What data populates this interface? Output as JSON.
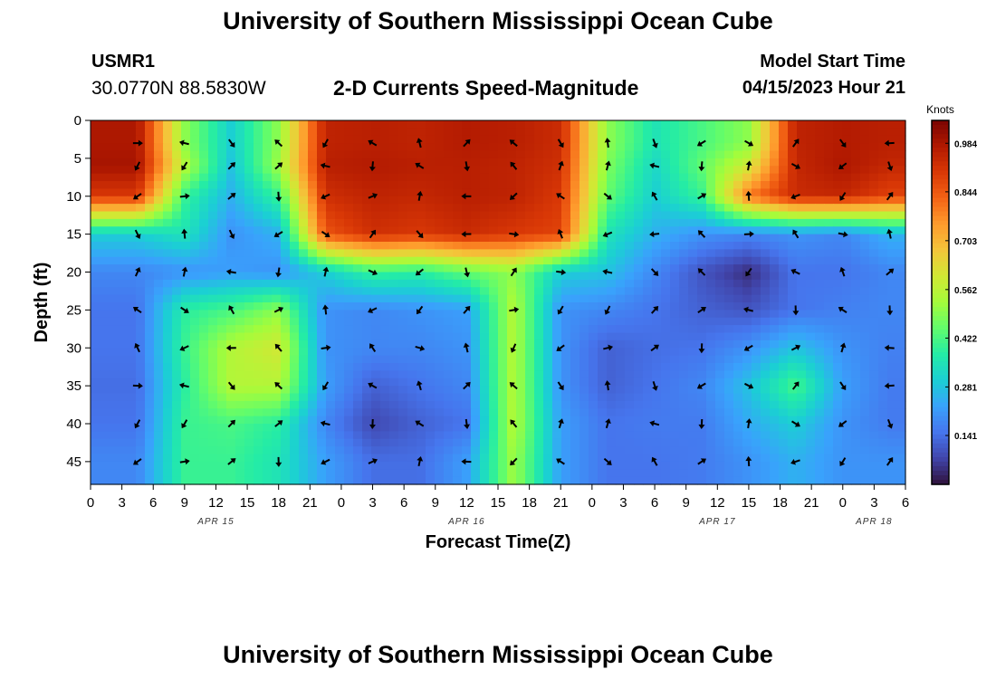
{
  "header": {
    "title": "University of Southern Mississippi Ocean Cube",
    "station_id": "USMR1",
    "station_coords": "30.0770N  88.5830W",
    "plot_title": "2-D Currents Speed-Magnitude",
    "model_label": "Model Start Time",
    "model_time": "04/15/2023 Hour 21"
  },
  "footer": {
    "title": "University of Southern Mississippi Ocean Cube"
  },
  "chart_data": {
    "type": "heatmap",
    "title": "2-D Currents Speed-Magnitude",
    "xlabel": "Forecast Time(Z)",
    "ylabel": "Depth (ft)",
    "x_tick_labels": [
      "0",
      "3",
      "6",
      "9",
      "12",
      "15",
      "18",
      "21",
      "0",
      "3",
      "6",
      "9",
      "12",
      "15",
      "18",
      "21",
      "0",
      "3",
      "6",
      "9",
      "12",
      "15",
      "18",
      "21",
      "0",
      "3",
      "6"
    ],
    "date_labels": [
      {
        "label": "APR 15",
        "x_index": 4
      },
      {
        "label": "APR 16",
        "x_index": 12
      },
      {
        "label": "APR 17",
        "x_index": 20
      },
      {
        "label": "APR 18",
        "x_index": 25
      }
    ],
    "y_tick_labels": [
      "0",
      "5",
      "10",
      "15",
      "20",
      "25",
      "30",
      "35",
      "40",
      "45"
    ],
    "ylim": [
      0,
      48
    ],
    "y_inverted": true,
    "x_hours": [
      4.5,
      9,
      13.5,
      18,
      22.5,
      27,
      31.5,
      36,
      40.5,
      45,
      49.5,
      54,
      58.5,
      63,
      67.5,
      72,
      76.5
    ],
    "depths": [
      3,
      6,
      10,
      15,
      20,
      25,
      30,
      35,
      40,
      45
    ],
    "values_knots": [
      [
        0.98,
        0.5,
        0.3,
        0.5,
        0.95,
        0.96,
        0.95,
        0.97,
        0.96,
        0.93,
        0.5,
        0.35,
        0.42,
        0.5,
        0.95,
        0.97,
        0.96
      ],
      [
        0.99,
        0.55,
        0.28,
        0.52,
        0.96,
        0.97,
        0.96,
        0.96,
        0.95,
        0.92,
        0.48,
        0.32,
        0.45,
        0.6,
        0.94,
        0.98,
        0.94
      ],
      [
        0.9,
        0.4,
        0.25,
        0.4,
        0.92,
        0.95,
        0.94,
        0.96,
        0.95,
        0.9,
        0.45,
        0.3,
        0.4,
        0.8,
        0.93,
        0.94,
        0.88
      ],
      [
        0.3,
        0.35,
        0.2,
        0.25,
        0.85,
        0.92,
        0.9,
        0.93,
        0.9,
        0.88,
        0.35,
        0.25,
        0.2,
        0.18,
        0.2,
        0.18,
        0.25
      ],
      [
        0.18,
        0.2,
        0.22,
        0.2,
        0.3,
        0.4,
        0.38,
        0.45,
        0.5,
        0.3,
        0.28,
        0.18,
        0.1,
        0.04,
        0.15,
        0.15,
        0.18
      ],
      [
        0.15,
        0.38,
        0.42,
        0.5,
        0.2,
        0.18,
        0.2,
        0.22,
        0.55,
        0.2,
        0.18,
        0.15,
        0.12,
        0.1,
        0.15,
        0.17,
        0.18
      ],
      [
        0.15,
        0.4,
        0.55,
        0.6,
        0.2,
        0.18,
        0.18,
        0.2,
        0.55,
        0.2,
        0.12,
        0.14,
        0.15,
        0.2,
        0.28,
        0.2,
        0.17
      ],
      [
        0.14,
        0.38,
        0.55,
        0.55,
        0.22,
        0.12,
        0.15,
        0.18,
        0.55,
        0.2,
        0.12,
        0.15,
        0.18,
        0.28,
        0.42,
        0.22,
        0.16
      ],
      [
        0.15,
        0.4,
        0.42,
        0.38,
        0.18,
        0.08,
        0.12,
        0.15,
        0.55,
        0.22,
        0.15,
        0.16,
        0.16,
        0.24,
        0.3,
        0.2,
        0.16
      ],
      [
        0.18,
        0.4,
        0.4,
        0.35,
        0.22,
        0.14,
        0.14,
        0.22,
        0.52,
        0.22,
        0.15,
        0.15,
        0.16,
        0.2,
        0.25,
        0.2,
        0.2
      ]
    ],
    "colorbar": {
      "label": "Knots",
      "tick_labels": [
        "0.984",
        "0.844",
        "0.703",
        "0.562",
        "0.422",
        "0.281",
        "0.141"
      ],
      "range": [
        0,
        1.05
      ]
    },
    "colors": [
      "#30123b",
      "#4145ab",
      "#4675ed",
      "#39a2fc",
      "#1bcfd4",
      "#24eca6",
      "#61fc6c",
      "#a4fc3b",
      "#d1e834",
      "#f3c63a",
      "#fe9b2d",
      "#f36315",
      "#d93806",
      "#b11901",
      "#7a0402"
    ]
  }
}
